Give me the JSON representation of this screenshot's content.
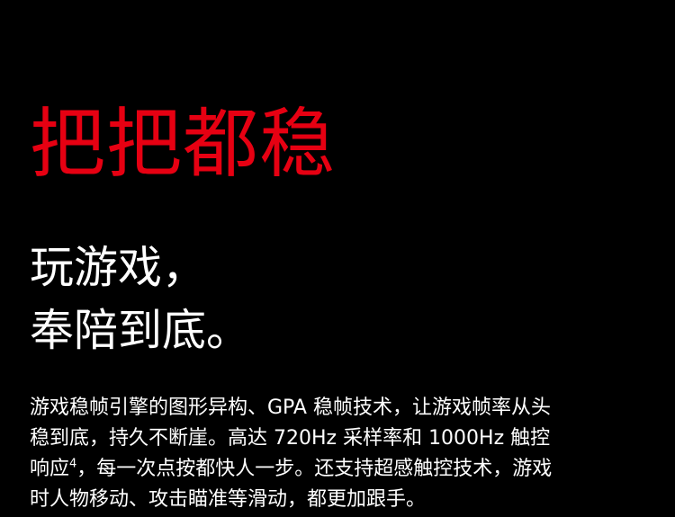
{
  "colors": {
    "background": "#000000",
    "headline": "#e60012",
    "text": "#ffffff"
  },
  "headline": "把把都稳",
  "subheadline": {
    "line1": "玩游戏，",
    "line2": "奉陪到底。"
  },
  "body": {
    "line1": "游戏稳帧引擎的图形异构、GPA 稳帧技术，让游戏帧率从头",
    "line2": "稳到底，持久不断崖。高达 720Hz 采样率和 1000Hz 触控",
    "line3_main": "响应",
    "line3_footnote": "4",
    "line3_rest": "，每一次点按都快人一步。还支持超感触控技术，游戏",
    "line4": "时人物移动、攻击瞄准等滑动，都更加跟手。"
  }
}
